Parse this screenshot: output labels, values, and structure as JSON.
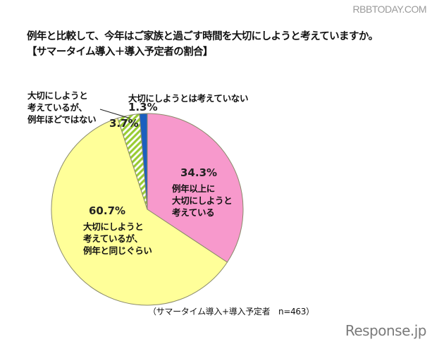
{
  "watermarks": {
    "top": "RBBTODAY.COM",
    "bottom": "Response.jp"
  },
  "title": {
    "line1": "例年と比較して、今年はご家族と過ごす時間を大切にしようと考えていますか。",
    "line2": "【サマータイム導入＋導入予定者の割合】"
  },
  "labels": {
    "more": {
      "pct": "34.3%",
      "line1": "例年以上に",
      "line2": "大切にしようと",
      "line3": "考えている"
    },
    "same": {
      "pct": "60.7%",
      "line1": "大切にしようと",
      "line2": "考えているが、",
      "line3": "例年と同じぐらい"
    },
    "less": {
      "pct": "3.7%",
      "line1": "大切にしようと",
      "line2": "考えているが、",
      "line3": "例年ほどではない"
    },
    "not": {
      "pct": "1.3%",
      "line1": "大切にしようとは考えていない"
    }
  },
  "note": "（サマータイム導入+導入予定者　n=463）",
  "colors": {
    "more": "#f799cc",
    "same": "#ffff99",
    "less_base": "#ffffff",
    "less_stripe": "#99cc33",
    "not": "#1a5fbf",
    "outline": "#8a8a6a"
  },
  "chart_data": {
    "type": "pie",
    "title": "例年と比較して、今年はご家族と過ごす時間を大切にしようと考えていますか。【サマータイム導入＋導入予定者の割合】",
    "categories": [
      "例年以上に大切にしようと考えている",
      "大切にしようと考えているが、例年と同じぐらい",
      "大切にしようと考えているが、例年ほどではない",
      "大切にしようとは考えていない"
    ],
    "values": [
      34.3,
      60.7,
      3.7,
      1.3
    ],
    "unit": "%",
    "start_angle": "12 o'clock, clockwise",
    "sample_size": "n=463",
    "note": "（サマータイム導入+導入予定者　n=463）"
  }
}
